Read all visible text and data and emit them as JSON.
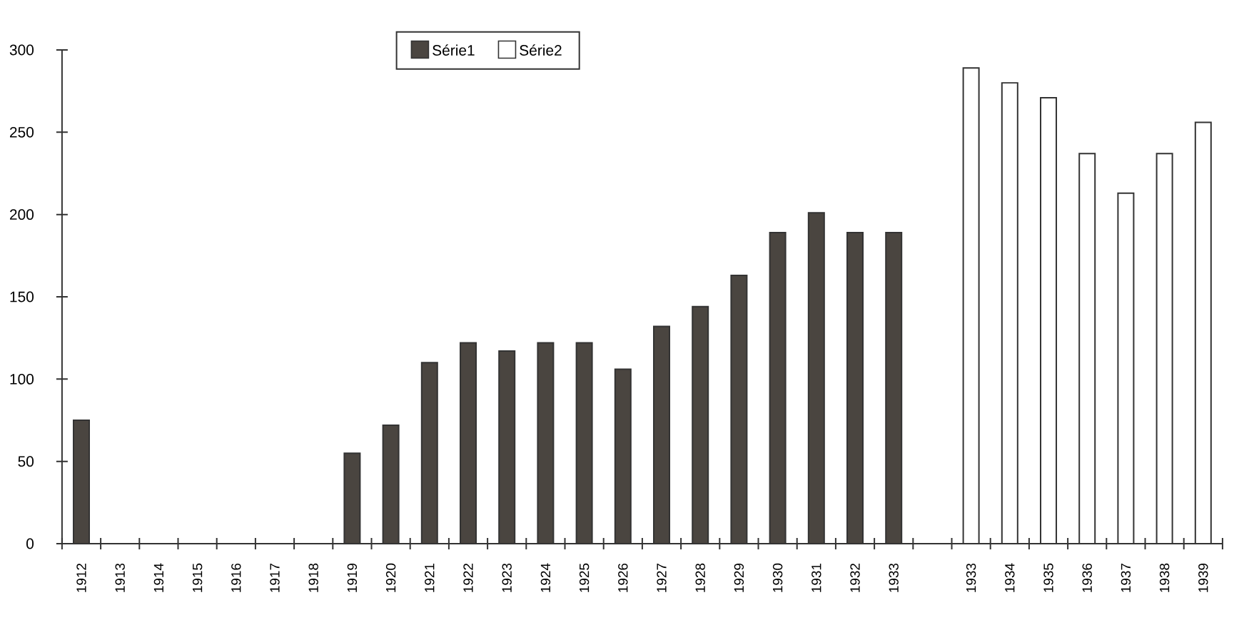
{
  "chart_data": {
    "type": "bar",
    "categories": [
      "1912",
      "1913",
      "1914",
      "1915",
      "1916",
      "1917",
      "1918",
      "1919",
      "1920",
      "1921",
      "1922",
      "1923",
      "1924",
      "1925",
      "1926",
      "1927",
      "1928",
      "1929",
      "1930",
      "1931",
      "1932",
      "1933",
      null,
      "1933",
      "1934",
      "1935",
      "1936",
      "1937",
      "1938",
      "1939"
    ],
    "series": [
      {
        "name": "Série1",
        "color": "#4a4540",
        "values": [
          75,
          null,
          null,
          null,
          null,
          null,
          null,
          55,
          72,
          110,
          122,
          117,
          122,
          122,
          106,
          132,
          144,
          163,
          189,
          201,
          189,
          189,
          null,
          null,
          null,
          null,
          null,
          null,
          null,
          null
        ]
      },
      {
        "name": "Série2",
        "color": "#ffffff",
        "values": [
          null,
          null,
          null,
          null,
          null,
          null,
          null,
          null,
          null,
          null,
          null,
          null,
          null,
          null,
          null,
          null,
          null,
          null,
          null,
          null,
          null,
          null,
          null,
          289,
          280,
          271,
          237,
          213,
          237,
          256
        ]
      }
    ],
    "ylim": [
      0,
      300
    ],
    "yticks": [
      0,
      50,
      100,
      150,
      200,
      250,
      300
    ],
    "legend": "top"
  }
}
